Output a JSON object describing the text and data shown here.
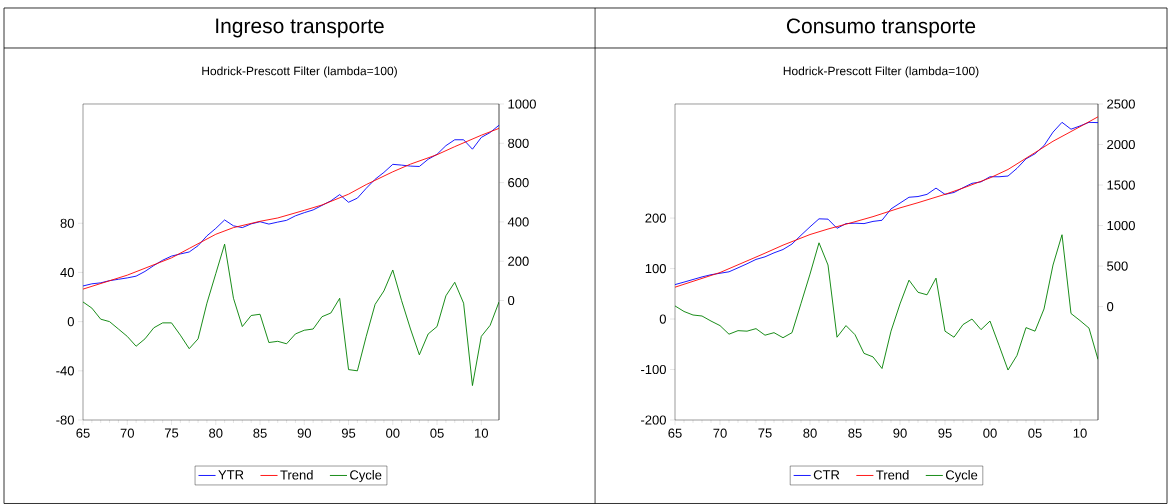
{
  "chart_data": [
    {
      "type": "line",
      "title": "Ingreso transporte",
      "subtitle": "Hodrick-Prescott Filter (lambda=100)",
      "x": [
        1965,
        1966,
        1967,
        1968,
        1969,
        1970,
        1971,
        1972,
        1973,
        1974,
        1975,
        1976,
        1977,
        1978,
        1979,
        1980,
        1981,
        1982,
        1983,
        1984,
        1985,
        1986,
        1987,
        1988,
        1989,
        1990,
        1991,
        1992,
        1993,
        1994,
        1995,
        1996,
        1997,
        1998,
        1999,
        2000,
        2001,
        2002,
        2003,
        2004,
        2005,
        2006,
        2007,
        2008,
        2009,
        2010,
        2011,
        2012
      ],
      "xlim": [
        1965,
        2012
      ],
      "xticks": [
        {
          "value": 1965,
          "label": "65"
        },
        {
          "value": 1970,
          "label": "70"
        },
        {
          "value": 1975,
          "label": "75"
        },
        {
          "value": 1980,
          "label": "80"
        },
        {
          "value": 1985,
          "label": "85"
        },
        {
          "value": 1990,
          "label": "90"
        },
        {
          "value": 1995,
          "label": "95"
        },
        {
          "value": 2000,
          "label": "00"
        },
        {
          "value": 2005,
          "label": "05"
        },
        {
          "value": 2010,
          "label": "10"
        }
      ],
      "ylim": [
        -80,
        177
      ],
      "yticks": [
        -80,
        -40,
        0,
        40,
        80
      ],
      "y2lim": [
        -608,
        1000
      ],
      "y2ticks": [
        0,
        200,
        400,
        600,
        800,
        1000
      ],
      "legend": "bottom",
      "line_style": "solid",
      "series": [
        {
          "name": "YTR",
          "color": "#0000ff",
          "axis": "y2",
          "values": [
            74,
            85,
            90,
            101,
            108,
            115,
            124,
            148,
            178,
            205,
            226,
            237,
            247,
            279,
            329,
            367,
            410,
            380,
            371,
            390,
            401,
            389,
            399,
            408,
            431,
            447,
            461,
            484,
            507,
            539,
            500,
            521,
            571,
            617,
            652,
            693,
            689,
            684,
            682,
            719,
            744,
            788,
            818,
            818,
            770,
            830,
            855,
            892
          ]
        },
        {
          "name": "Trend",
          "color": "#ff0000",
          "axis": "y2",
          "x": [
            1965,
            1970,
            1975,
            1977,
            1980,
            1982,
            1985,
            1987,
            1990,
            1992,
            1995,
            1997,
            2000,
            2002,
            2005,
            2007,
            2010,
            2012
          ],
          "values": [
            58,
            129,
            217,
            265,
            337,
            371,
            403,
            420,
            459,
            486,
            541,
            590,
            655,
            694,
            742,
            783,
            841,
            876
          ]
        },
        {
          "name": "Cycle",
          "color": "#008000",
          "values": [
            16,
            11,
            2,
            0,
            -6,
            -12,
            -20,
            -14,
            -5,
            -1,
            -1,
            -11,
            -22,
            -14,
            15,
            39,
            63,
            19,
            -4,
            5,
            6,
            -17,
            -16,
            -18,
            -10,
            -7,
            -6,
            4,
            7,
            19,
            -39,
            -40,
            -12,
            14,
            25,
            42,
            17,
            -6,
            -27,
            -10,
            -4,
            21,
            32,
            15,
            -52,
            -12,
            -3,
            16
          ]
        }
      ]
    },
    {
      "type": "line",
      "title": "Consumo transporte",
      "subtitle": "Hodrick-Prescott Filter (lambda=100)",
      "x": [
        1965,
        1966,
        1967,
        1968,
        1969,
        1970,
        1971,
        1972,
        1973,
        1974,
        1975,
        1976,
        1977,
        1978,
        1979,
        1980,
        1981,
        1982,
        1983,
        1984,
        1985,
        1986,
        1987,
        1988,
        1989,
        1990,
        1991,
        1992,
        1993,
        1994,
        1995,
        1996,
        1997,
        1998,
        1999,
        2000,
        2001,
        2002,
        2003,
        2004,
        2005,
        2006,
        2007,
        2008,
        2009,
        2010,
        2011,
        2012
      ],
      "xlim": [
        1965,
        2012
      ],
      "xticks": [
        {
          "value": 1965,
          "label": "65"
        },
        {
          "value": 1970,
          "label": "70"
        },
        {
          "value": 1975,
          "label": "75"
        },
        {
          "value": 1980,
          "label": "80"
        },
        {
          "value": 1985,
          "label": "85"
        },
        {
          "value": 1990,
          "label": "90"
        },
        {
          "value": 1995,
          "label": "95"
        },
        {
          "value": 2000,
          "label": "00"
        },
        {
          "value": 2005,
          "label": "05"
        },
        {
          "value": 2010,
          "label": "10"
        }
      ],
      "ylim": [
        -200,
        426
      ],
      "yticks": [
        -200,
        -100,
        0,
        100,
        200
      ],
      "y2lim": [
        -1400,
        2500
      ],
      "y2ticks": [
        0,
        500,
        1000,
        1500,
        2000,
        2500
      ],
      "legend": "bottom",
      "line_style": "solid",
      "series": [
        {
          "name": "CTR",
          "color": "#0000ff",
          "axis": "y2",
          "values": [
            271,
            302,
            334,
            366,
            393,
            411,
            429,
            478,
            528,
            582,
            614,
            663,
            704,
            772,
            880,
            984,
            1083,
            1079,
            966,
            1024,
            1029,
            1024,
            1051,
            1065,
            1205,
            1277,
            1349,
            1358,
            1385,
            1462,
            1385,
            1408,
            1467,
            1521,
            1539,
            1602,
            1602,
            1611,
            1706,
            1823,
            1886,
            1986,
            2153,
            2274,
            2189,
            2229,
            2274,
            2270
          ]
        },
        {
          "name": "Trend",
          "color": "#ff0000",
          "axis": "y2",
          "x": [
            1965,
            1970,
            1975,
            1977,
            1980,
            1982,
            1985,
            1987,
            1990,
            1992,
            1995,
            1997,
            2000,
            2002,
            2005,
            2007,
            2010,
            2012
          ],
          "values": [
            239,
            420,
            659,
            758,
            889,
            957,
            1047,
            1110,
            1218,
            1282,
            1385,
            1462,
            1588,
            1692,
            1900,
            2040,
            2220,
            2342
          ]
        },
        {
          "name": "Cycle",
          "color": "#008000",
          "values": [
            26,
            15,
            8,
            6,
            -4,
            -13,
            -30,
            -23,
            -24,
            -19,
            -32,
            -27,
            -37,
            -27,
            31,
            89,
            151,
            107,
            -36,
            -13,
            -31,
            -68,
            -75,
            -98,
            -24,
            30,
            77,
            53,
            48,
            81,
            -24,
            -36,
            -11,
            0,
            -21,
            -4,
            -52,
            -101,
            -72,
            -17,
            -24,
            20,
            107,
            167,
            11,
            -3,
            -18,
            -80
          ]
        }
      ]
    }
  ]
}
